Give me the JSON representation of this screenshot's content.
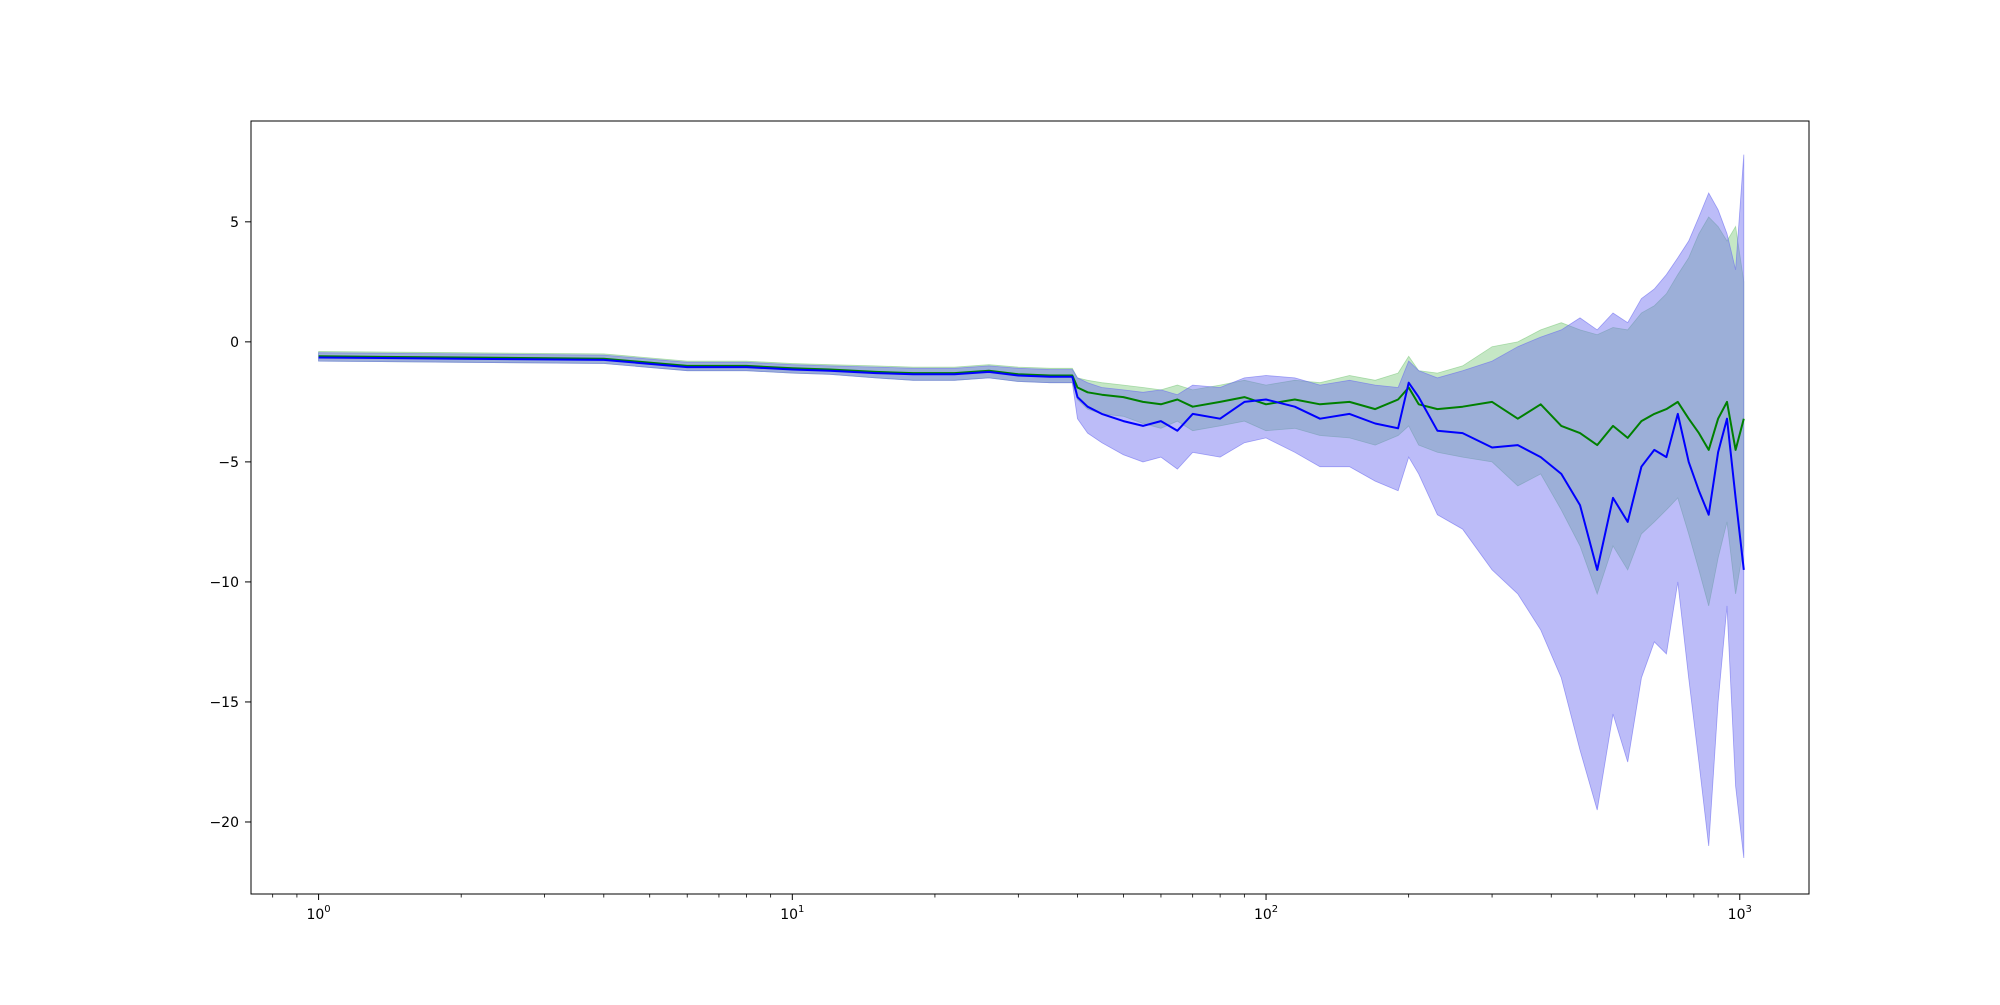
{
  "chart_data": {
    "type": "line",
    "title": "",
    "xlabel": "",
    "ylabel": "",
    "xscale": "log",
    "xlim": [
      0.72,
      1400
    ],
    "ylim": [
      -23,
      9.2
    ],
    "grid": false,
    "legend": "none",
    "xticks": [
      {
        "value": 1,
        "base": "10",
        "exp": "0"
      },
      {
        "value": 10,
        "base": "10",
        "exp": "1"
      },
      {
        "value": 100,
        "base": "10",
        "exp": "2"
      },
      {
        "value": 1000,
        "base": "10",
        "exp": "3"
      }
    ],
    "yticks": [
      {
        "value": 5,
        "label": "5"
      },
      {
        "value": 0,
        "label": "0"
      },
      {
        "value": -5,
        "label": "−5"
      },
      {
        "value": -10,
        "label": "−10"
      },
      {
        "value": -15,
        "label": "−15"
      },
      {
        "value": -20,
        "label": "−20"
      }
    ],
    "series": [
      {
        "color": "#008000",
        "band_color": "#7fc97f",
        "x": [
          1,
          2,
          4,
          6,
          8,
          10,
          12,
          15,
          18,
          22,
          26,
          30,
          35,
          39,
          40,
          42,
          45,
          50,
          55,
          60,
          65,
          70,
          80,
          90,
          100,
          115,
          130,
          150,
          170,
          190,
          200,
          210,
          230,
          260,
          300,
          340,
          380,
          420,
          460,
          500,
          540,
          580,
          620,
          660,
          700,
          740,
          780,
          820,
          860,
          900,
          940,
          980,
          1020
        ],
        "y": [
          -0.6,
          -0.65,
          -0.7,
          -1.0,
          -1.0,
          -1.1,
          -1.15,
          -1.25,
          -1.3,
          -1.3,
          -1.2,
          -1.35,
          -1.4,
          -1.4,
          -1.9,
          -2.1,
          -2.2,
          -2.3,
          -2.5,
          -2.6,
          -2.4,
          -2.7,
          -2.5,
          -2.3,
          -2.6,
          -2.4,
          -2.6,
          -2.5,
          -2.8,
          -2.4,
          -1.9,
          -2.6,
          -2.8,
          -2.7,
          -2.5,
          -3.2,
          -2.6,
          -3.5,
          -3.8,
          -4.3,
          -3.5,
          -4.0,
          -3.3,
          -3.0,
          -2.8,
          -2.5,
          -3.2,
          -3.8,
          -4.5,
          -3.2,
          -2.5,
          -4.5,
          -3.2
        ],
        "lower": [
          -0.8,
          -0.85,
          -0.9,
          -1.2,
          -1.2,
          -1.3,
          -1.35,
          -1.5,
          -1.6,
          -1.6,
          -1.5,
          -1.65,
          -1.7,
          -1.7,
          -2.4,
          -2.8,
          -3.0,
          -3.1,
          -3.4,
          -3.6,
          -3.3,
          -3.7,
          -3.5,
          -3.3,
          -3.7,
          -3.6,
          -3.9,
          -4.0,
          -4.3,
          -3.9,
          -3.5,
          -4.3,
          -4.6,
          -4.8,
          -5.0,
          -6.0,
          -5.5,
          -7.0,
          -8.5,
          -10.5,
          -8.5,
          -9.5,
          -8.0,
          -7.5,
          -7.0,
          -6.5,
          -8.0,
          -9.5,
          -11.0,
          -9.0,
          -7.5,
          -10.5,
          -8.5
        ],
        "upper": [
          -0.4,
          -0.45,
          -0.5,
          -0.8,
          -0.8,
          -0.9,
          -0.95,
          -1.0,
          -1.05,
          -1.05,
          -0.95,
          -1.05,
          -1.1,
          -1.1,
          -1.5,
          -1.6,
          -1.7,
          -1.8,
          -1.9,
          -2.0,
          -1.8,
          -2.0,
          -1.8,
          -1.6,
          -1.8,
          -1.6,
          -1.7,
          -1.4,
          -1.6,
          -1.3,
          -0.6,
          -1.2,
          -1.3,
          -1.0,
          -0.2,
          0.0,
          0.5,
          0.8,
          0.5,
          0.3,
          0.6,
          0.5,
          1.2,
          1.5,
          2.0,
          2.8,
          3.5,
          4.5,
          5.2,
          4.8,
          4.2,
          4.8,
          2.5
        ]
      },
      {
        "color": "#0000ff",
        "band_color": "#6b6bf0",
        "x": [
          1,
          2,
          4,
          6,
          8,
          10,
          12,
          15,
          18,
          22,
          26,
          30,
          35,
          39,
          40,
          42,
          45,
          50,
          55,
          60,
          65,
          70,
          80,
          90,
          100,
          115,
          130,
          150,
          170,
          190,
          200,
          210,
          230,
          260,
          300,
          340,
          380,
          420,
          460,
          500,
          540,
          580,
          620,
          660,
          700,
          740,
          780,
          820,
          860,
          900,
          940,
          980,
          1020
        ],
        "y": [
          -0.65,
          -0.7,
          -0.75,
          -1.05,
          -1.05,
          -1.15,
          -1.2,
          -1.3,
          -1.35,
          -1.35,
          -1.25,
          -1.4,
          -1.45,
          -1.45,
          -2.3,
          -2.7,
          -3.0,
          -3.3,
          -3.5,
          -3.3,
          -3.7,
          -3.0,
          -3.2,
          -2.5,
          -2.4,
          -2.7,
          -3.2,
          -3.0,
          -3.4,
          -3.6,
          -1.7,
          -2.3,
          -3.7,
          -3.8,
          -4.4,
          -4.3,
          -4.8,
          -5.5,
          -6.8,
          -9.5,
          -6.5,
          -7.5,
          -5.2,
          -4.5,
          -4.8,
          -3.0,
          -5.0,
          -6.2,
          -7.2,
          -4.6,
          -3.2,
          -6.5,
          -9.5
        ],
        "lower": [
          -0.8,
          -0.85,
          -0.9,
          -1.2,
          -1.2,
          -1.3,
          -1.35,
          -1.5,
          -1.6,
          -1.6,
          -1.5,
          -1.65,
          -1.7,
          -1.7,
          -3.2,
          -3.8,
          -4.2,
          -4.7,
          -5.0,
          -4.8,
          -5.3,
          -4.6,
          -4.8,
          -4.2,
          -4.0,
          -4.6,
          -5.2,
          -5.2,
          -5.8,
          -6.2,
          -4.8,
          -5.5,
          -7.2,
          -7.8,
          -9.5,
          -10.5,
          -12.0,
          -14.0,
          -17.0,
          -19.5,
          -15.5,
          -17.5,
          -14.0,
          -12.5,
          -13.0,
          -10.0,
          -14.0,
          -17.5,
          -21.0,
          -15.0,
          -11.0,
          -18.5,
          -21.5
        ],
        "upper": [
          -0.45,
          -0.5,
          -0.55,
          -0.85,
          -0.85,
          -0.95,
          -1.0,
          -1.05,
          -1.1,
          -1.1,
          -1.0,
          -1.1,
          -1.15,
          -1.15,
          -1.5,
          -1.7,
          -1.9,
          -2.0,
          -2.1,
          -2.0,
          -2.2,
          -1.8,
          -1.9,
          -1.5,
          -1.4,
          -1.5,
          -1.8,
          -1.6,
          -1.8,
          -1.9,
          -0.8,
          -1.2,
          -1.5,
          -1.2,
          -0.8,
          -0.2,
          0.2,
          0.5,
          1.0,
          0.5,
          1.2,
          0.8,
          1.8,
          2.2,
          2.8,
          3.5,
          4.2,
          5.2,
          6.2,
          5.5,
          4.5,
          3.0,
          7.8
        ]
      }
    ]
  }
}
